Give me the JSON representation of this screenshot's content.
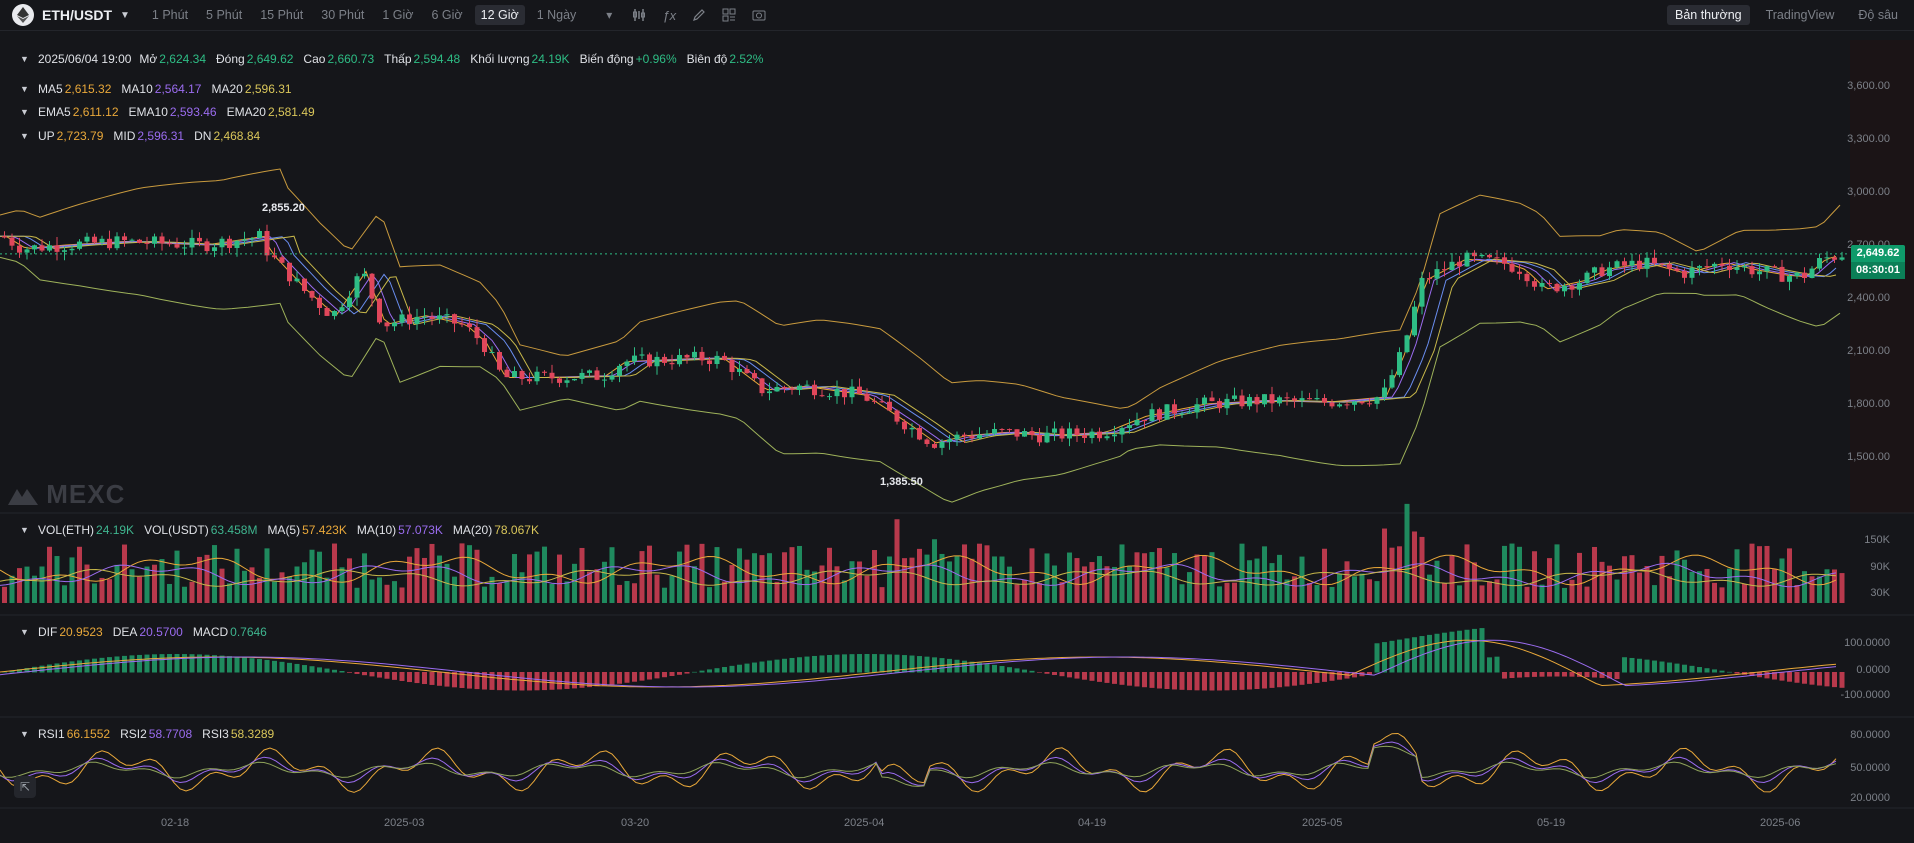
{
  "topbar": {
    "pair": "ETH/USDT",
    "timeframes": [
      "1 Phút",
      "5 Phút",
      "15 Phút",
      "30 Phút",
      "1 Giờ",
      "6 Giờ",
      "12 Giờ",
      "1 Ngày"
    ],
    "active_timeframe": "12 Giờ",
    "views": [
      "Bản thường",
      "TradingView",
      "Độ sâu"
    ],
    "active_view": "Bản thường"
  },
  "ohlc": {
    "date": "2025/06/04 19:00",
    "open_label": "Mở",
    "open": "2,624.34",
    "close_label": "Đóng",
    "close": "2,649.62",
    "high_label": "Cao",
    "high": "2,660.73",
    "low_label": "Thấp",
    "low": "2,594.48",
    "vol_label": "Khối lượng",
    "vol": "24.19K",
    "change_label": "Biến động",
    "change": "+0.96%",
    "amp_label": "Biên độ",
    "amp": "2.52%"
  },
  "ma": {
    "ma5_label": "MA5",
    "ma5": "2,615.32",
    "ma10_label": "MA10",
    "ma10": "2,564.17",
    "ma20_label": "MA20",
    "ma20": "2,596.31"
  },
  "ema": {
    "ema5_label": "EMA5",
    "ema5": "2,611.12",
    "ema10_label": "EMA10",
    "ema10": "2,593.46",
    "ema20_label": "EMA20",
    "ema20": "2,581.49"
  },
  "boll": {
    "up_label": "UP",
    "up": "2,723.79",
    "mid_label": "MID",
    "mid": "2,596.31",
    "dn_label": "DN",
    "dn": "2,468.84"
  },
  "price_axis": [
    "3,600.00",
    "3,300.00",
    "3,000.00",
    "2,700.00",
    "2,400.00",
    "2,100.00",
    "1,800.00",
    "1,500.00"
  ],
  "last_price": "2,649.62",
  "countdown": "08:30:01",
  "annotations": {
    "high": "2,855.20",
    "low": "1,385.50"
  },
  "watermark": "MEXC",
  "volume": {
    "vol_eth_label": "VOL(ETH)",
    "vol_eth": "24.19K",
    "vol_usdt_label": "VOL(USDT)",
    "vol_usdt": "63.458M",
    "ma5_label": "MA(5)",
    "ma5": "57.423K",
    "ma10_label": "MA(10)",
    "ma10": "57.073K",
    "ma20_label": "MA(20)",
    "ma20": "78.067K",
    "axis": [
      "150K",
      "90K",
      "30K"
    ]
  },
  "macd": {
    "dif_label": "DIF",
    "dif": "20.9523",
    "dea_label": "DEA",
    "dea": "20.5700",
    "macd_label": "MACD",
    "macd": "0.7646",
    "axis": [
      "100.0000",
      "0.0000",
      "-100.0000"
    ]
  },
  "rsi": {
    "rsi1_label": "RSI1",
    "rsi1": "66.1552",
    "rsi2_label": "RSI2",
    "rsi2": "58.7708",
    "rsi3_label": "RSI3",
    "rsi3": "58.3289",
    "axis": [
      "80.0000",
      "50.0000",
      "20.0000"
    ]
  },
  "dates": [
    "02-18",
    "2025-03",
    "03-20",
    "2025-04",
    "04-19",
    "2025-05",
    "05-19",
    "2025-06"
  ],
  "colors": {
    "up": "#2ebd85",
    "down": "#e0475b",
    "bg": "#15161a",
    "ma5": "#e9a83a",
    "ma10": "#9b6cf0",
    "ma20": "#c8b84a"
  }
}
